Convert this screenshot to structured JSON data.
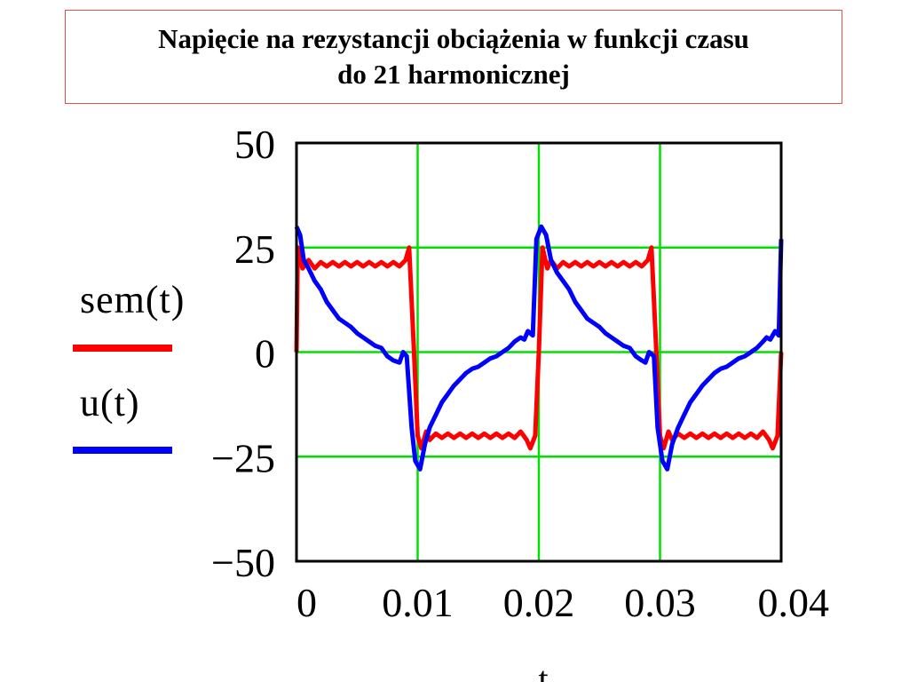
{
  "title": {
    "line1": "Napięcie na rezystancji obciążenia w funkcji czasu",
    "line2": "do 21 harmonicznej"
  },
  "chart_data": {
    "type": "line",
    "xlabel": "t",
    "ylabel": "",
    "xlim": [
      0,
      0.04
    ],
    "ylim": [
      -50,
      50
    ],
    "x_ticks": [
      0,
      0.01,
      0.02,
      0.03,
      0.04
    ],
    "x_tick_labels": [
      "0",
      "0.01",
      "0.02",
      "0.03",
      "0.04"
    ],
    "y_ticks": [
      50,
      25,
      0,
      -25,
      -50
    ],
    "y_tick_labels": [
      "50",
      "25",
      "0",
      "−25",
      "−50"
    ],
    "grid": true,
    "grid_color": "#00e000",
    "legend_placement": "left",
    "series": [
      {
        "name": "sem(t)",
        "color": "#ff0000",
        "x": [
          0,
          0.0001,
          0.0005,
          0.001,
          0.0015,
          0.002,
          0.0025,
          0.003,
          0.0035,
          0.004,
          0.0045,
          0.005,
          0.0055,
          0.006,
          0.0065,
          0.007,
          0.0075,
          0.008,
          0.0085,
          0.009,
          0.0093,
          0.0097,
          0.01,
          0.0103,
          0.0107,
          0.011,
          0.0115,
          0.012,
          0.0125,
          0.013,
          0.0135,
          0.014,
          0.0145,
          0.015,
          0.0155,
          0.016,
          0.0165,
          0.017,
          0.0175,
          0.018,
          0.0185,
          0.019,
          0.0193,
          0.0197,
          0.02,
          0.0203,
          0.0207,
          0.021,
          0.0215,
          0.022,
          0.0225,
          0.023,
          0.0235,
          0.024,
          0.0245,
          0.025,
          0.0255,
          0.026,
          0.0265,
          0.027,
          0.0275,
          0.028,
          0.0285,
          0.029,
          0.0293,
          0.0297,
          0.03,
          0.0303,
          0.0307,
          0.031,
          0.0315,
          0.032,
          0.0325,
          0.033,
          0.0335,
          0.034,
          0.0345,
          0.035,
          0.0355,
          0.036,
          0.0365,
          0.037,
          0.0375,
          0.038,
          0.0385,
          0.039,
          0.0393,
          0.0397,
          0.04
        ],
        "values": [
          0,
          25,
          20,
          22,
          20,
          21.5,
          20.5,
          21.5,
          20.5,
          21.5,
          20.5,
          21.5,
          20.5,
          21.5,
          20.5,
          21.5,
          20.5,
          21.5,
          20.5,
          22,
          25,
          0,
          -20,
          -23,
          -19,
          -21,
          -19.5,
          -20.5,
          -19.5,
          -20.5,
          -19.5,
          -20.5,
          -19.5,
          -20.5,
          -19.5,
          -20.5,
          -19.5,
          -20.5,
          -19.5,
          -20.5,
          -19,
          -21,
          -23,
          -20,
          0,
          25,
          20,
          22,
          20,
          21.5,
          20.5,
          21.5,
          20.5,
          21.5,
          20.5,
          21.5,
          20.5,
          21.5,
          20.5,
          21.5,
          20.5,
          21.5,
          20.5,
          22,
          25,
          0,
          -20,
          -23,
          -19,
          -21,
          -19.5,
          -20.5,
          -19.5,
          -20.5,
          -19.5,
          -20.5,
          -19.5,
          -20.5,
          -19.5,
          -20.5,
          -19.5,
          -20.5,
          -19.5,
          -20.5,
          -19,
          -21,
          -23,
          -20,
          0
        ]
      },
      {
        "name": "u(t)",
        "color": "#0000ff",
        "x": [
          0,
          0.0003,
          0.0006,
          0.001,
          0.0015,
          0.002,
          0.0025,
          0.003,
          0.0035,
          0.004,
          0.0045,
          0.005,
          0.0055,
          0.006,
          0.0065,
          0.007,
          0.0075,
          0.008,
          0.0085,
          0.0088,
          0.0091,
          0.0095,
          0.0098,
          0.0102,
          0.0106,
          0.011,
          0.0115,
          0.012,
          0.0125,
          0.013,
          0.0135,
          0.014,
          0.0145,
          0.015,
          0.0155,
          0.016,
          0.0165,
          0.017,
          0.0175,
          0.018,
          0.0185,
          0.0188,
          0.0191,
          0.0195,
          0.0198,
          0.0202,
          0.0206,
          0.021,
          0.0215,
          0.022,
          0.0225,
          0.023,
          0.0235,
          0.024,
          0.0245,
          0.025,
          0.0255,
          0.026,
          0.0265,
          0.027,
          0.0275,
          0.028,
          0.0285,
          0.0288,
          0.0291,
          0.0295,
          0.0298,
          0.0302,
          0.0306,
          0.031,
          0.0315,
          0.032,
          0.0325,
          0.033,
          0.0335,
          0.034,
          0.0345,
          0.035,
          0.0355,
          0.036,
          0.0365,
          0.037,
          0.0375,
          0.038,
          0.0385,
          0.0388,
          0.0391,
          0.0395,
          0.0398,
          0.04
        ],
        "values": [
          30,
          28,
          22,
          20,
          17,
          15,
          12,
          10,
          8,
          7,
          6,
          4.5,
          3.5,
          2.5,
          1.5,
          1,
          -1,
          -2,
          -2.5,
          0,
          -1,
          -18,
          -26,
          -28,
          -22,
          -18,
          -15,
          -12,
          -10,
          -8,
          -6.5,
          -5,
          -4,
          -3.5,
          -2.5,
          -1.5,
          -1,
          0,
          1,
          2.5,
          3.5,
          3,
          5,
          4,
          27,
          30,
          28,
          22,
          19,
          17,
          15,
          12,
          10,
          8,
          7,
          6,
          4.5,
          3.5,
          2.5,
          1.5,
          1,
          -1,
          -2,
          -2.5,
          0,
          -1,
          -18,
          -26,
          -28,
          -22,
          -18,
          -15,
          -12,
          -10,
          -8,
          -6.5,
          -5,
          -4,
          -3.5,
          -2.5,
          -1.5,
          -1,
          0,
          1,
          2.5,
          3.5,
          3,
          5,
          4,
          27
        ]
      }
    ]
  },
  "legend": [
    {
      "label": "sem(t)",
      "color": "#ff0000"
    },
    {
      "label": "u(t)",
      "color": "#0000ff"
    }
  ]
}
